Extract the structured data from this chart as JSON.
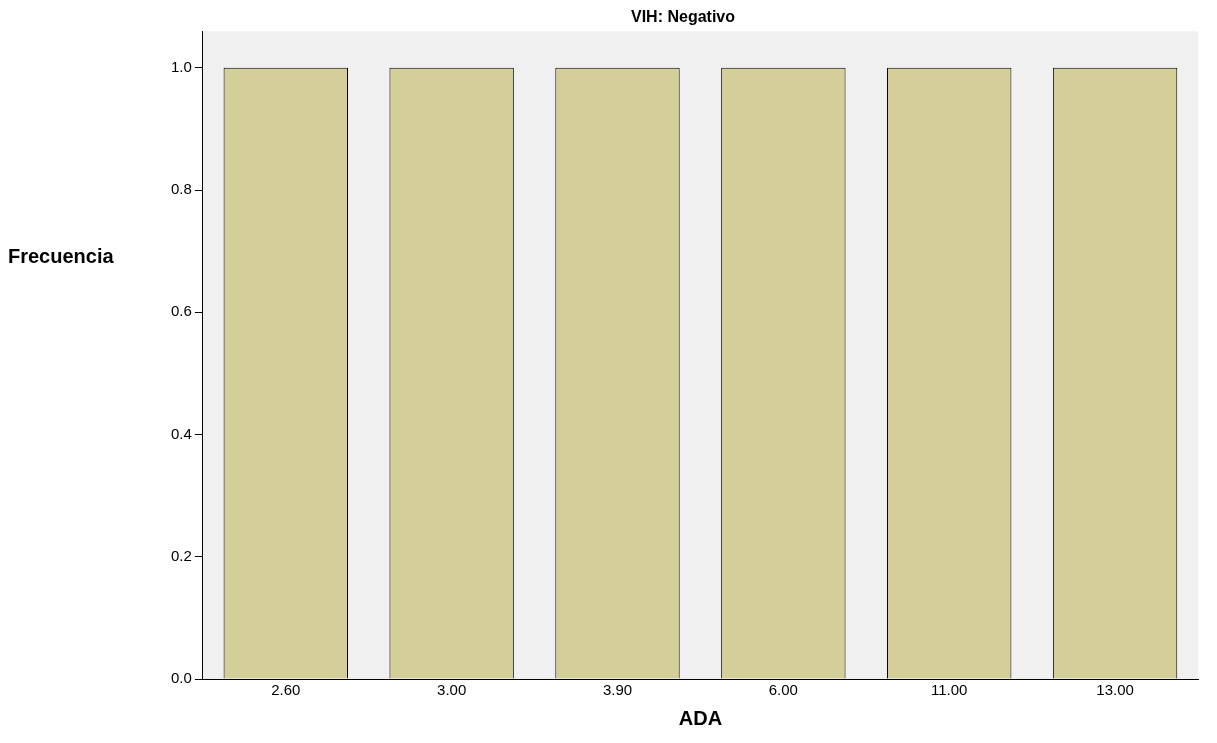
{
  "chart_data": {
    "type": "bar",
    "title": "VIH: Negativo",
    "xlabel": "ADA",
    "ylabel": "Frecuencia",
    "categories": [
      "2.60",
      "3.00",
      "3.90",
      "6.00",
      "11.00",
      "13.00"
    ],
    "values": [
      1,
      1,
      1,
      1,
      1,
      1
    ],
    "color": "#d4cf98",
    "ylim": [
      0,
      1.06
    ],
    "yticks": [
      {
        "value": 0,
        "label": "0.0"
      },
      {
        "value": 0.2,
        "label": "0.2"
      },
      {
        "value": 0.4,
        "label": "0.4"
      },
      {
        "value": 0.6,
        "label": "0.6"
      },
      {
        "value": 0.8,
        "label": "0.8"
      },
      {
        "value": 1,
        "label": "1.0"
      }
    ],
    "grid": false,
    "legend": false
  }
}
